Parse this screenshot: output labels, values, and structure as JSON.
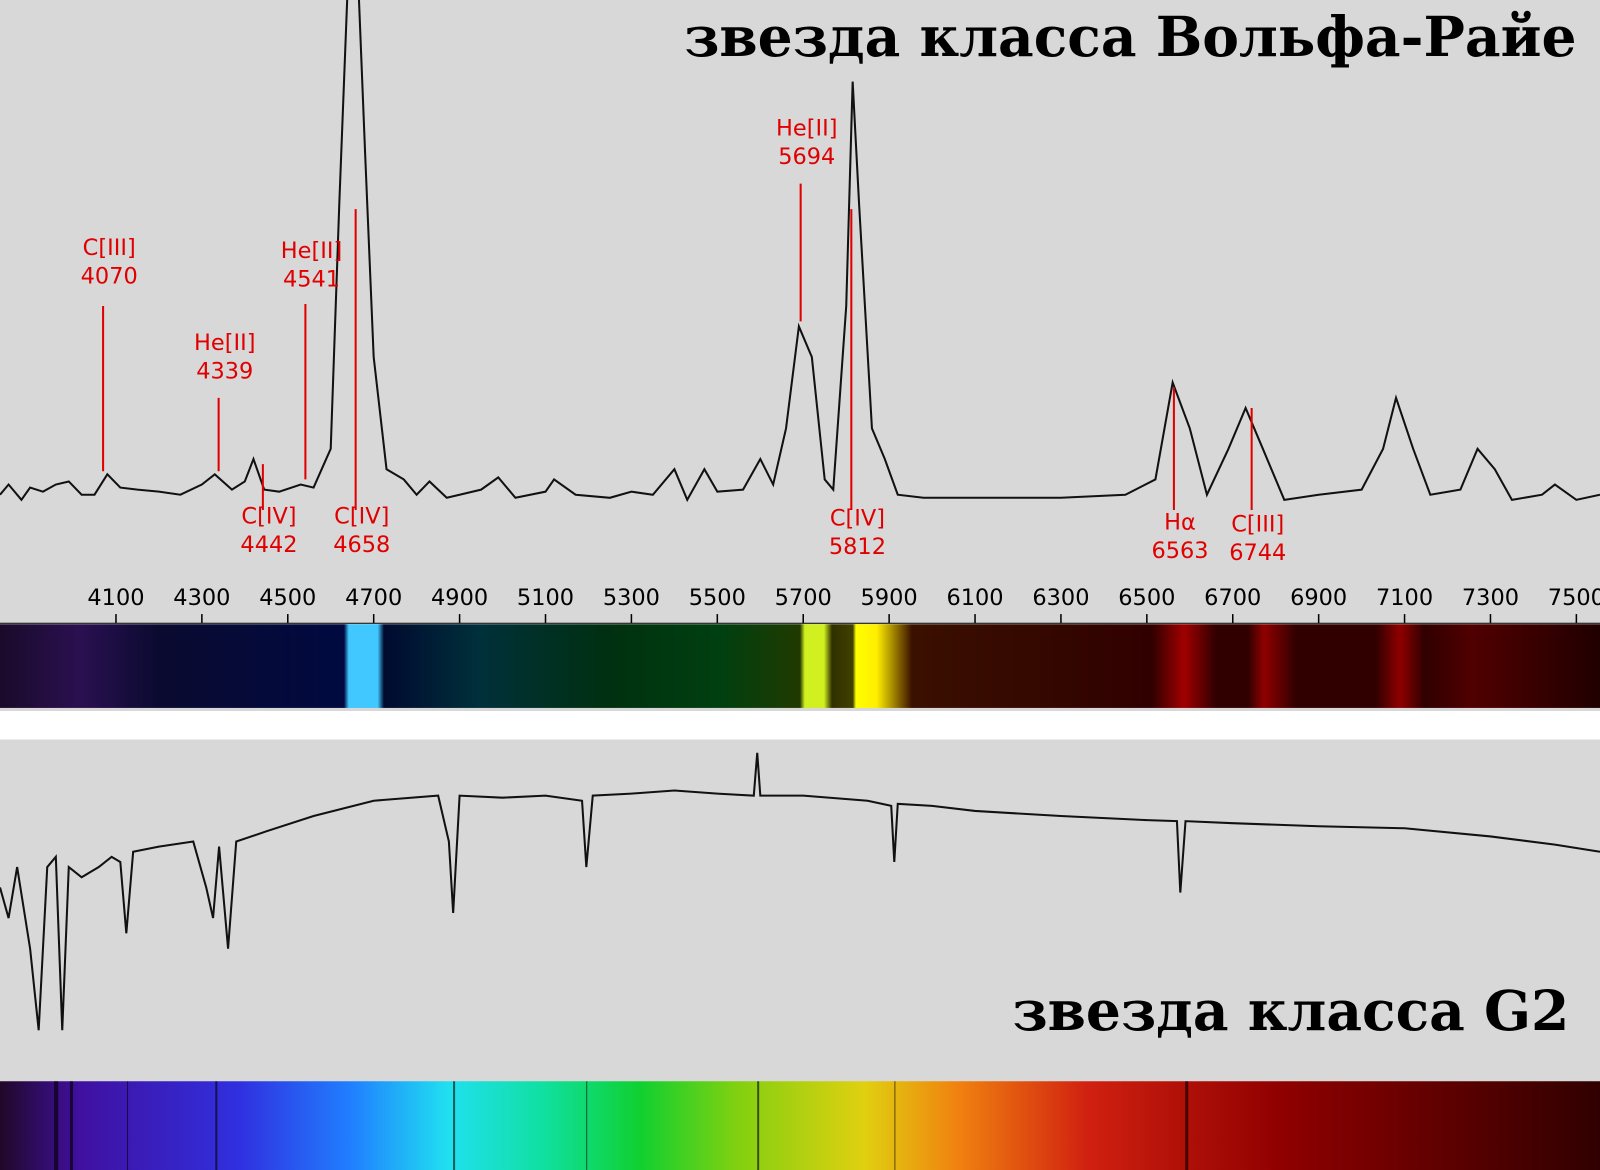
{
  "chart_data": [
    {
      "type": "line",
      "title": "звезда класса Вольфа-Райе",
      "color": "#111111",
      "xlim": [
        3830,
        7555
      ],
      "ylim": [
        0,
        500
      ],
      "xticks": [
        4100,
        4300,
        4500,
        4700,
        4900,
        5100,
        5300,
        5500,
        5700,
        5900,
        6100,
        6300,
        6500,
        6700,
        6900,
        7100,
        7300,
        7500
      ],
      "x": [
        3830,
        3850,
        3880,
        3900,
        3930,
        3960,
        3990,
        4020,
        4050,
        4080,
        4110,
        4150,
        4200,
        4250,
        4300,
        4330,
        4370,
        4400,
        4420,
        4445,
        4480,
        4530,
        4560,
        4600,
        4620,
        4640,
        4660,
        4680,
        4700,
        4730,
        4770,
        4800,
        4830,
        4870,
        4900,
        4950,
        4990,
        5030,
        5100,
        5120,
        5170,
        5250,
        5300,
        5350,
        5400,
        5430,
        5470,
        5500,
        5560,
        5600,
        5630,
        5660,
        5690,
        5720,
        5750,
        5770,
        5800,
        5815,
        5830,
        5860,
        5890,
        5920,
        5980,
        6100,
        6300,
        6450,
        6520,
        6560,
        6600,
        6640,
        6690,
        6730,
        6770,
        6820,
        6900,
        7000,
        7050,
        7080,
        7120,
        7160,
        7230,
        7270,
        7310,
        7350,
        7420,
        7450,
        7500,
        7555
      ],
      "values": [
        15,
        25,
        10,
        22,
        18,
        25,
        28,
        15,
        15,
        35,
        22,
        20,
        18,
        15,
        25,
        35,
        20,
        28,
        50,
        20,
        18,
        25,
        22,
        60,
        300,
        520,
        560,
        350,
        150,
        40,
        30,
        15,
        28,
        12,
        15,
        20,
        32,
        12,
        18,
        30,
        15,
        12,
        18,
        15,
        40,
        10,
        40,
        18,
        20,
        50,
        25,
        80,
        180,
        150,
        30,
        20,
        200,
        420,
        300,
        80,
        50,
        15,
        12,
        12,
        12,
        15,
        30,
        125,
        80,
        15,
        60,
        100,
        60,
        10,
        15,
        20,
        60,
        110,
        60,
        15,
        20,
        60,
        40,
        10,
        15,
        25,
        10,
        15
      ],
      "annotations": [
        {
          "label": "C[III]",
          "wavelength": 4070
        },
        {
          "label": "He[II]",
          "wavelength": 4339
        },
        {
          "label": "C[IV]",
          "wavelength": 4442
        },
        {
          "label": "He[II]",
          "wavelength": 4541
        },
        {
          "label": "C[IV]",
          "wavelength": 4658
        },
        {
          "label": "He[II]",
          "wavelength": 5694
        },
        {
          "label": "C[IV]",
          "wavelength": 5812
        },
        {
          "label": "Hα",
          "wavelength": 6563
        },
        {
          "label": "C[III]",
          "wavelength": 6744
        }
      ]
    },
    {
      "type": "line",
      "title": "звезда класса G2",
      "color": "#111111",
      "xlim": [
        3830,
        7555
      ],
      "ylim": [
        0,
        400
      ],
      "x": [
        3830,
        3850,
        3870,
        3900,
        3920,
        3940,
        3960,
        3975,
        3990,
        4020,
        4060,
        4090,
        4110,
        4124,
        4140,
        4200,
        4280,
        4310,
        4326,
        4340,
        4361,
        4380,
        4450,
        4560,
        4700,
        4850,
        4875,
        4885,
        4900,
        5000,
        5100,
        5185,
        5195,
        5210,
        5300,
        5400,
        5500,
        5585,
        5593,
        5600,
        5700,
        5850,
        5905,
        5912,
        5920,
        6000,
        6100,
        6300,
        6500,
        6570,
        6578,
        6590,
        6700,
        6900,
        7100,
        7300,
        7450,
        7555
      ],
      "values": [
        180,
        150,
        200,
        120,
        40,
        200,
        210,
        40,
        200,
        190,
        200,
        210,
        205,
        135,
        215,
        220,
        225,
        180,
        150,
        220,
        120,
        225,
        235,
        250,
        265,
        270,
        225,
        155,
        270,
        268,
        270,
        265,
        200,
        270,
        272,
        275,
        272,
        270,
        312,
        270,
        270,
        265,
        260,
        205,
        262,
        260,
        255,
        250,
        246,
        245,
        175,
        245,
        243,
        240,
        238,
        230,
        222,
        215
      ]
    }
  ]
}
